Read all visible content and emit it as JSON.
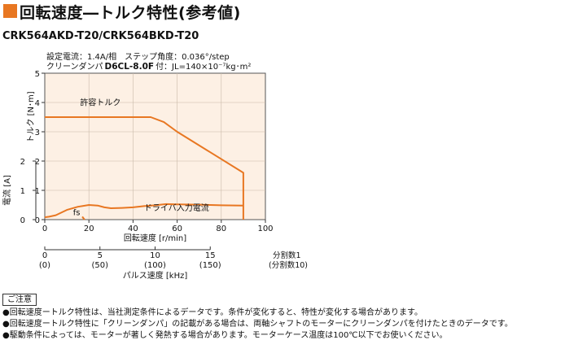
{
  "header": {
    "title": "回転速度―トルク特性(参考値)",
    "model": "CRK564AKD-T20/CRK564BKD-T20",
    "accent_color": "#e87722"
  },
  "conditions": {
    "line1": "設定電流：1.4A/相　ステップ角度：0.036°/step",
    "line2_prefix": "クリーンダンパ",
    "line2_damper": "D6CL-8.0F",
    "line2_inertia": "付：JL=140×10⁻⁷kg･m²"
  },
  "notes": {
    "heading": "ご注意",
    "items": [
      "●回転速度ートルク特性は、当社測定条件によるデータです。条件が変化すると、特性が変化する場合があります。",
      "●回転速度ートルク特性に「クリーンダンパ」の記載がある場合は、両軸シャフトのモーターにクリーンダンパを付けたときのデータです。",
      "●駆動条件によっては、モーターが著しく発熱する場合があります。モーターケース温度は100℃以下でお使いください。"
    ]
  },
  "chart_data": {
    "type": "line",
    "plot_background": "#fdf0e4",
    "line_color": "#e87722",
    "xlabel": "回転速度 [r/min]",
    "ylabel_torque": "トルク [N･m]",
    "ylabel_current": "電流 [A]",
    "xlim": [
      0,
      100
    ],
    "ylim_torque": [
      0,
      5
    ],
    "ylim_current": [
      0,
      2
    ],
    "x_ticks": [
      "0",
      "20",
      "40",
      "60",
      "80",
      "100"
    ],
    "y_torque_ticks": [
      "0",
      "1",
      "2",
      "3",
      "4",
      "5"
    ],
    "y_current_ticks": [
      "0",
      "1",
      "2"
    ],
    "series": [
      {
        "name": "許容トルク",
        "axis": "torque",
        "points": [
          [
            0,
            3.5
          ],
          [
            20,
            3.5
          ],
          [
            40,
            3.5
          ],
          [
            48,
            3.5
          ],
          [
            54,
            3.33
          ],
          [
            60,
            3.0
          ],
          [
            75,
            2.3
          ],
          [
            90,
            1.6
          ],
          [
            90,
            0
          ]
        ]
      },
      {
        "name": "ドライバ入力電流",
        "axis": "current",
        "points": [
          [
            0,
            0.08
          ],
          [
            2,
            0.1
          ],
          [
            5,
            0.15
          ],
          [
            10,
            0.33
          ],
          [
            15,
            0.44
          ],
          [
            20,
            0.5
          ],
          [
            24,
            0.48
          ],
          [
            27,
            0.42
          ],
          [
            30,
            0.39
          ],
          [
            35,
            0.4
          ],
          [
            40,
            0.42
          ],
          [
            45,
            0.46
          ],
          [
            50,
            0.49
          ],
          [
            55,
            0.53
          ],
          [
            60,
            0.52
          ],
          [
            70,
            0.51
          ],
          [
            80,
            0.49
          ],
          [
            90,
            0.48
          ]
        ]
      }
    ],
    "fs": {
      "label": "fs",
      "x": 18,
      "current_from": 0.1,
      "current_to": 0
    },
    "pulse_axis": {
      "title": "パルス速度 [kHz]",
      "ticks": [
        {
          "x": 0,
          "div1": "0",
          "div10": "(0)"
        },
        {
          "x": 25,
          "div1": "5",
          "div10": "(50)"
        },
        {
          "x": 50,
          "div1": "10",
          "div10": "(100)"
        },
        {
          "x": 75,
          "div1": "15",
          "div10": "(150)"
        }
      ],
      "label_div1": "分割数1",
      "label_div10": "(分割数10)"
    }
  }
}
